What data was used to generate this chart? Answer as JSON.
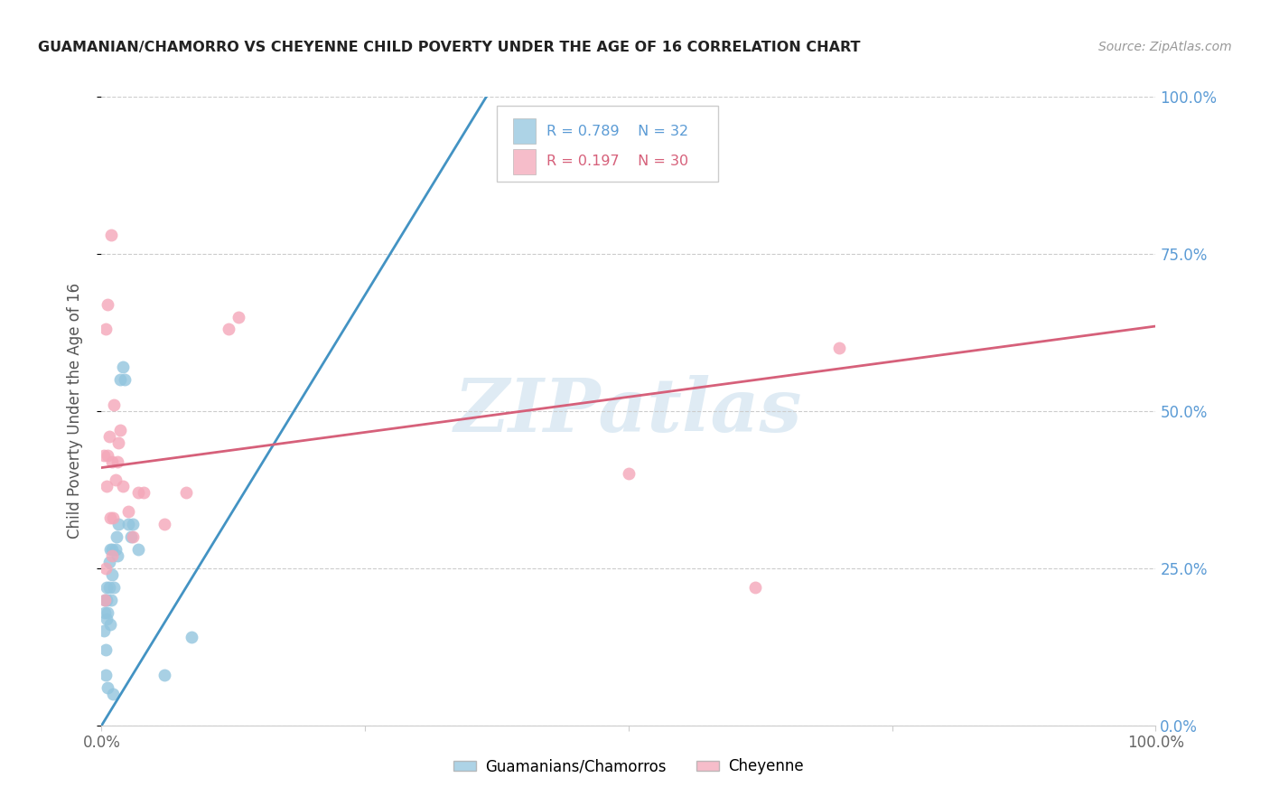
{
  "title": "GUAMANIAN/CHAMORRO VS CHEYENNE CHILD POVERTY UNDER THE AGE OF 16 CORRELATION CHART",
  "source": "Source: ZipAtlas.com",
  "ylabel": "Child Poverty Under the Age of 16",
  "R_blue": 0.789,
  "N_blue": 32,
  "R_pink": 0.197,
  "N_pink": 30,
  "blue_color": "#92c5de",
  "pink_color": "#f4a7b9",
  "line_blue": "#4393c3",
  "line_pink": "#d6607a",
  "watermark": "ZIPatlas",
  "blue_x": [
    0.002,
    0.003,
    0.003,
    0.004,
    0.004,
    0.005,
    0.005,
    0.005,
    0.006,
    0.006,
    0.007,
    0.007,
    0.008,
    0.008,
    0.009,
    0.01,
    0.01,
    0.011,
    0.012,
    0.013,
    0.014,
    0.015,
    0.016,
    0.018,
    0.02,
    0.022,
    0.025,
    0.028,
    0.03,
    0.035,
    0.06,
    0.085
  ],
  "blue_y": [
    0.15,
    0.18,
    0.2,
    0.08,
    0.12,
    0.17,
    0.2,
    0.22,
    0.06,
    0.18,
    0.22,
    0.26,
    0.16,
    0.28,
    0.2,
    0.24,
    0.28,
    0.05,
    0.22,
    0.28,
    0.3,
    0.27,
    0.32,
    0.55,
    0.57,
    0.55,
    0.32,
    0.3,
    0.32,
    0.28,
    0.08,
    0.14
  ],
  "pink_x": [
    0.002,
    0.003,
    0.004,
    0.005,
    0.006,
    0.007,
    0.008,
    0.009,
    0.01,
    0.011,
    0.012,
    0.013,
    0.015,
    0.016,
    0.018,
    0.02,
    0.025,
    0.03,
    0.035,
    0.06,
    0.08,
    0.12,
    0.13,
    0.5,
    0.62,
    0.7,
    0.004,
    0.006,
    0.01,
    0.04
  ],
  "pink_y": [
    0.43,
    0.2,
    0.63,
    0.38,
    0.67,
    0.46,
    0.33,
    0.78,
    0.42,
    0.33,
    0.51,
    0.39,
    0.42,
    0.45,
    0.47,
    0.38,
    0.34,
    0.3,
    0.37,
    0.32,
    0.37,
    0.63,
    0.65,
    0.4,
    0.22,
    0.6,
    0.25,
    0.43,
    0.27,
    0.37
  ],
  "blue_line_x0": 0.0,
  "blue_line_x1": 0.365,
  "blue_line_y0": 0.0,
  "blue_line_y1": 1.0,
  "pink_line_x0": 0.0,
  "pink_line_x1": 1.0,
  "pink_line_y0": 0.41,
  "pink_line_y1": 0.635,
  "xlim": [
    0.0,
    1.0
  ],
  "ylim": [
    0.0,
    1.0
  ],
  "x_ticks": [
    0.0,
    0.25,
    0.5,
    0.75,
    1.0
  ],
  "x_tick_labels": [
    "0.0%",
    "",
    "",
    "",
    "100.0%"
  ],
  "y_ticks": [
    0.0,
    0.25,
    0.5,
    0.75,
    1.0
  ],
  "y_tick_labels_right": [
    "0.0%",
    "25.0%",
    "50.0%",
    "75.0%",
    "100.0%"
  ]
}
